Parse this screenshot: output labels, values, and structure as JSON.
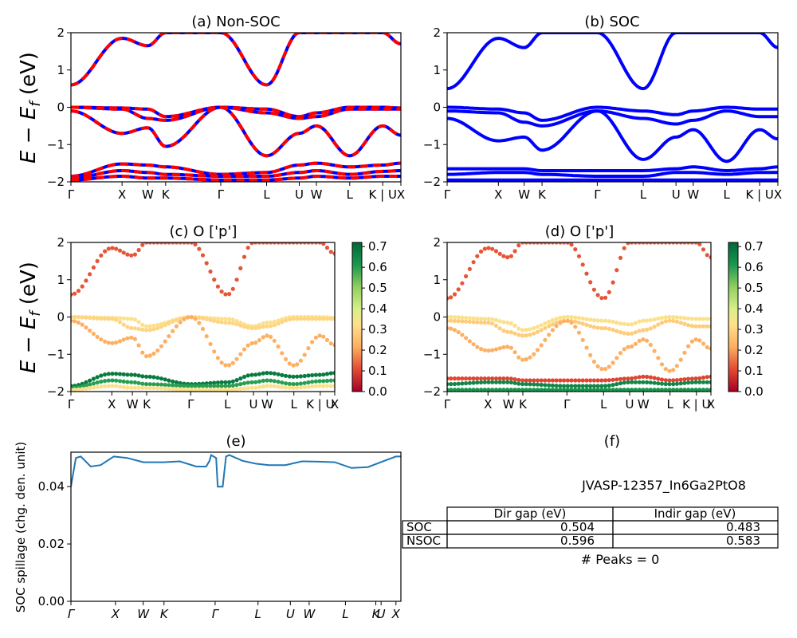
{
  "chart_data": [
    {
      "id": "a",
      "type": "line",
      "title": "(a) Non-SOC",
      "ylabel": "E − E_f (eV)",
      "ylim": [
        -2,
        2
      ],
      "yticks": [
        "2",
        "1",
        "0",
        "−1",
        "−2"
      ],
      "kpath": [
        "Γ",
        "X",
        "W",
        "K",
        "Γ",
        "L",
        "U",
        "W",
        "L",
        "K | U",
        "X"
      ],
      "kpos": [
        0,
        0.155,
        0.233,
        0.287,
        0.454,
        0.593,
        0.692,
        0.744,
        0.845,
        0.945,
        1.0
      ],
      "series": [
        {
          "style": "blue-red",
          "values": [
            0.6,
            1.85,
            1.65,
            2.0,
            2.0,
            0.6,
            2.0,
            2.0,
            2.0,
            2.0,
            1.7
          ]
        },
        {
          "style": "blue-red",
          "values": [
            0.0,
            -0.02,
            -0.05,
            -0.25,
            0.0,
            -0.05,
            -0.25,
            -0.15,
            0.0,
            0.0,
            -0.02
          ]
        },
        {
          "style": "blue-red",
          "values": [
            0.0,
            -0.05,
            -0.3,
            -0.35,
            0.0,
            -0.15,
            -0.3,
            -0.25,
            -0.05,
            -0.05,
            -0.05
          ]
        },
        {
          "style": "blue-red",
          "values": [
            -0.1,
            -0.7,
            -0.55,
            -1.05,
            0.0,
            -1.3,
            -0.7,
            -0.5,
            -1.3,
            -0.5,
            -0.75
          ]
        },
        {
          "style": "blue-red",
          "values": [
            -1.85,
            -1.52,
            -1.55,
            -1.6,
            -1.8,
            -1.75,
            -1.55,
            -1.5,
            -1.6,
            -1.55,
            -1.5
          ]
        },
        {
          "style": "blue-red",
          "values": [
            -1.9,
            -1.7,
            -1.75,
            -1.8,
            -1.85,
            -1.85,
            -1.75,
            -1.7,
            -1.8,
            -1.72,
            -1.7
          ]
        },
        {
          "style": "blue-red",
          "values": [
            -1.95,
            -1.85,
            -1.9,
            -1.9,
            -1.95,
            -1.95,
            -1.9,
            -1.85,
            -1.9,
            -1.85,
            -1.85
          ]
        }
      ]
    },
    {
      "id": "b",
      "type": "line",
      "title": "(b) SOC",
      "ylabel": "",
      "ylim": [
        -2,
        2
      ],
      "yticks": [
        "2",
        "1",
        "0",
        "−1",
        "−2"
      ],
      "kpath": [
        "Γ",
        "X",
        "W",
        "K",
        "Γ",
        "L",
        "U",
        "W",
        "L",
        "K | U",
        "X"
      ],
      "kpos": [
        0,
        0.155,
        0.233,
        0.287,
        0.454,
        0.593,
        0.692,
        0.744,
        0.845,
        0.945,
        1.0
      ],
      "series": [
        {
          "style": "blue",
          "values": [
            0.5,
            1.85,
            1.6,
            2.0,
            2.0,
            0.5,
            2.0,
            2.0,
            2.0,
            2.0,
            1.6
          ]
        },
        {
          "style": "blue",
          "values": [
            0.0,
            -0.05,
            -0.15,
            -0.35,
            0.0,
            -0.1,
            -0.2,
            -0.1,
            0.0,
            -0.05,
            -0.05
          ]
        },
        {
          "style": "blue",
          "values": [
            -0.1,
            -0.15,
            -0.4,
            -0.5,
            -0.1,
            -0.3,
            -0.45,
            -0.35,
            -0.1,
            -0.25,
            -0.25
          ]
        },
        {
          "style": "blue",
          "values": [
            -0.3,
            -0.9,
            -0.8,
            -1.15,
            -0.1,
            -1.4,
            -0.8,
            -0.6,
            -1.45,
            -0.6,
            -0.85
          ]
        },
        {
          "style": "blue",
          "values": [
            -1.65,
            -1.65,
            -1.65,
            -1.7,
            -1.7,
            -1.7,
            -1.65,
            -1.6,
            -1.7,
            -1.65,
            -1.6
          ]
        },
        {
          "style": "blue",
          "values": [
            -1.8,
            -1.75,
            -1.75,
            -1.8,
            -1.85,
            -1.85,
            -1.75,
            -1.75,
            -1.8,
            -1.75,
            -1.75
          ]
        },
        {
          "style": "blue",
          "values": [
            -1.95,
            -1.95,
            -1.95,
            -1.95,
            -1.95,
            -1.95,
            -1.95,
            -1.95,
            -1.95,
            -1.95,
            -1.95
          ]
        }
      ]
    },
    {
      "id": "c",
      "type": "scatter",
      "title": "(c)  O ['p']",
      "ylabel": "E − E_f (eV)",
      "ylim": [
        -2,
        2
      ],
      "yticks": [
        "2",
        "1",
        "0",
        "−1",
        "−2"
      ],
      "kpath": [
        "Γ",
        "X",
        "W",
        "K",
        "Γ",
        "L",
        "U",
        "W",
        "L",
        "K | U",
        "X"
      ],
      "kpos": [
        0,
        0.155,
        0.233,
        0.287,
        0.454,
        0.593,
        0.692,
        0.744,
        0.845,
        0.945,
        1.0
      ],
      "colorbar": {
        "ticks": [
          "0.7",
          "0.6",
          "0.5",
          "0.4",
          "0.3",
          "0.2",
          "0.1",
          "0.0"
        ],
        "range": [
          0.0,
          0.72
        ],
        "cmap": "RdYlGn"
      },
      "series": [
        {
          "weight": 0.12,
          "values": [
            0.6,
            1.85,
            1.65,
            2.0,
            2.0,
            0.6,
            2.0,
            2.0,
            2.0,
            2.0,
            1.7
          ]
        },
        {
          "weight": 0.33,
          "values": [
            0.0,
            -0.02,
            -0.05,
            -0.25,
            0.0,
            -0.05,
            -0.25,
            -0.15,
            0.0,
            0.0,
            -0.02
          ]
        },
        {
          "weight": 0.3,
          "values": [
            0.0,
            -0.05,
            -0.3,
            -0.35,
            0.0,
            -0.15,
            -0.3,
            -0.25,
            -0.05,
            -0.05,
            -0.05
          ]
        },
        {
          "weight": 0.22,
          "values": [
            -0.1,
            -0.7,
            -0.55,
            -1.05,
            0.0,
            -1.3,
            -0.7,
            -0.5,
            -1.3,
            -0.5,
            -0.75
          ]
        },
        {
          "weight": 0.68,
          "values": [
            -1.85,
            -1.52,
            -1.55,
            -1.6,
            -1.8,
            -1.75,
            -1.55,
            -1.5,
            -1.6,
            -1.55,
            -1.5
          ]
        },
        {
          "weight": 0.6,
          "values": [
            -1.9,
            -1.7,
            -1.75,
            -1.8,
            -1.85,
            -1.85,
            -1.75,
            -1.7,
            -1.8,
            -1.72,
            -1.7
          ]
        },
        {
          "weight": 0.33,
          "values": [
            -1.95,
            -1.85,
            -1.9,
            -1.9,
            -1.95,
            -1.95,
            -1.9,
            -1.85,
            -1.9,
            -1.85,
            -1.85
          ]
        }
      ]
    },
    {
      "id": "d",
      "type": "scatter",
      "title": "(d) O ['p']",
      "ylabel": "",
      "ylim": [
        -2,
        2
      ],
      "yticks": [
        "2",
        "1",
        "0",
        "−1",
        "−2"
      ],
      "kpath": [
        "Γ",
        "X",
        "W",
        "K",
        "Γ",
        "L",
        "U",
        "W",
        "L",
        "K | U",
        "X"
      ],
      "kpos": [
        0,
        0.155,
        0.233,
        0.287,
        0.454,
        0.593,
        0.692,
        0.744,
        0.845,
        0.945,
        1.0
      ],
      "colorbar": {
        "ticks": [
          "0.7",
          "0.6",
          "0.5",
          "0.4",
          "0.3",
          "0.2",
          "0.1",
          "0.0"
        ],
        "range": [
          0.0,
          0.72
        ],
        "cmap": "RdYlGn"
      },
      "series": [
        {
          "weight": 0.12,
          "values": [
            0.5,
            1.85,
            1.6,
            2.0,
            2.0,
            0.5,
            2.0,
            2.0,
            2.0,
            2.0,
            1.6
          ]
        },
        {
          "weight": 0.33,
          "values": [
            0.0,
            -0.05,
            -0.15,
            -0.35,
            0.0,
            -0.1,
            -0.2,
            -0.1,
            0.0,
            -0.05,
            -0.05
          ]
        },
        {
          "weight": 0.28,
          "values": [
            -0.1,
            -0.15,
            -0.4,
            -0.5,
            -0.1,
            -0.3,
            -0.45,
            -0.35,
            -0.1,
            -0.25,
            -0.25
          ]
        },
        {
          "weight": 0.22,
          "values": [
            -0.3,
            -0.9,
            -0.8,
            -1.15,
            -0.1,
            -1.4,
            -0.8,
            -0.6,
            -1.45,
            -0.6,
            -0.85
          ]
        },
        {
          "weight": 0.1,
          "values": [
            -1.65,
            -1.65,
            -1.65,
            -1.7,
            -1.7,
            -1.7,
            -1.65,
            -1.6,
            -1.7,
            -1.65,
            -1.6
          ]
        },
        {
          "weight": 0.65,
          "values": [
            -1.8,
            -1.75,
            -1.75,
            -1.8,
            -1.85,
            -1.85,
            -1.75,
            -1.75,
            -1.8,
            -1.75,
            -1.75
          ]
        },
        {
          "weight": 0.62,
          "values": [
            -1.95,
            -1.95,
            -1.95,
            -1.95,
            -1.95,
            -1.95,
            -1.95,
            -1.95,
            -1.95,
            -1.95,
            -1.95
          ]
        }
      ]
    },
    {
      "id": "e",
      "type": "line",
      "title": "(e)",
      "ylabel": "SOC spillage (chg. den. unit)",
      "ylim": [
        0.0,
        0.052
      ],
      "yticks": [
        "0.04",
        "0.02",
        "0.00"
      ],
      "ytick_values": [
        0.04,
        0.02,
        0.0
      ],
      "kpath": [
        "Γ",
        "X",
        "W",
        "K",
        "Γ",
        "L",
        "U",
        "W",
        "L",
        "K",
        "U",
        "X"
      ],
      "kpos": [
        0,
        0.135,
        0.219,
        0.282,
        0.437,
        0.567,
        0.665,
        0.722,
        0.832,
        0.924,
        0.94,
        0.985
      ],
      "x": [
        0,
        0.015,
        0.03,
        0.06,
        0.09,
        0.13,
        0.17,
        0.22,
        0.28,
        0.33,
        0.38,
        0.41,
        0.42,
        0.425,
        0.44,
        0.445,
        0.46,
        0.47,
        0.48,
        0.52,
        0.56,
        0.6,
        0.65,
        0.7,
        0.75,
        0.8,
        0.85,
        0.9,
        0.95,
        0.985,
        1.0
      ],
      "values": [
        0.04,
        0.05,
        0.0505,
        0.047,
        0.0475,
        0.0505,
        0.05,
        0.0485,
        0.0485,
        0.0488,
        0.047,
        0.047,
        0.049,
        0.051,
        0.05,
        0.04,
        0.04,
        0.0505,
        0.051,
        0.049,
        0.048,
        0.0475,
        0.0475,
        0.0488,
        0.0487,
        0.0485,
        0.0465,
        0.0468,
        0.049,
        0.0505,
        0.0505
      ]
    }
  ],
  "panel_f": {
    "title": "(f)",
    "material": "JVASP-12357_In6Ga2PtO8",
    "header": [
      "Dir gap (eV)",
      "Indir gap (eV)"
    ],
    "rows": [
      {
        "label": "SOC",
        "dir": "0.504",
        "indir": "0.483"
      },
      {
        "label": "NSOC",
        "dir": "0.596",
        "indir": "0.583"
      }
    ],
    "peaks": "# Peaks = 0"
  }
}
